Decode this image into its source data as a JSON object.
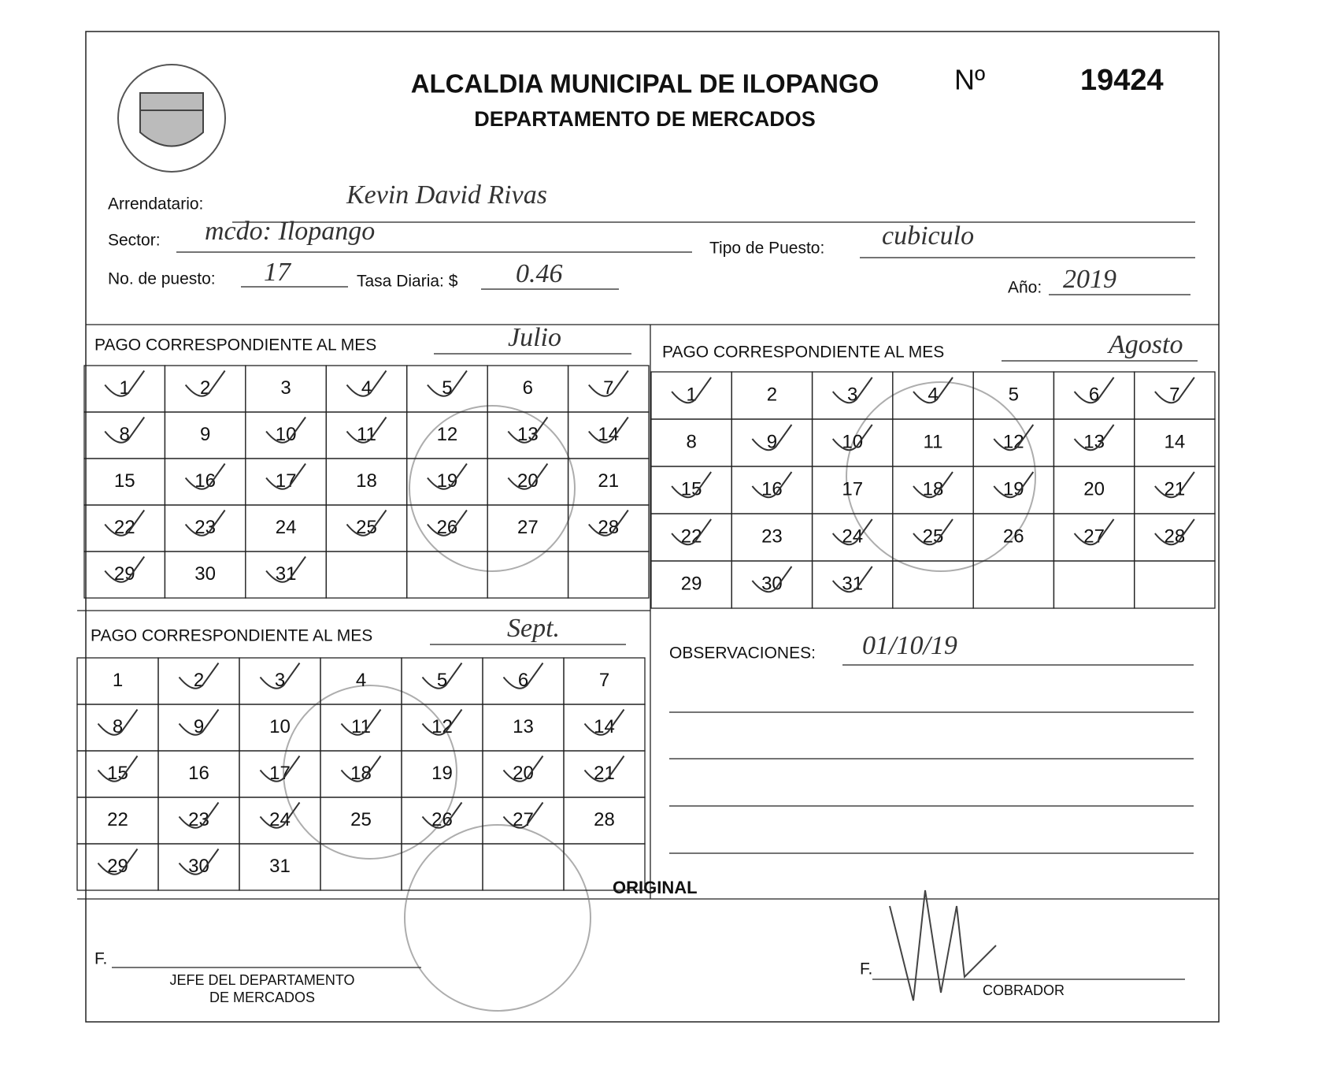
{
  "header": {
    "title": "ALCALDIA MUNICIPAL DE ILOPANGO",
    "subtitle": "DEPARTAMENTO DE MERCADOS",
    "number_label": "Nº",
    "number": "19424"
  },
  "fields": {
    "arrendatario": {
      "label": "Arrendatario:",
      "value": "Kevin David Rivas"
    },
    "sector": {
      "label": "Sector:",
      "value": "mcdo: Ilopango"
    },
    "tipo": {
      "label": "Tipo de Puesto:",
      "value": "cubiculo"
    },
    "puesto": {
      "label": "No. de puesto:",
      "value": "17"
    },
    "tasa": {
      "label": "Tasa Diaria: $",
      "value": "0.46"
    },
    "anio": {
      "label": "Año:",
      "value": "2019"
    }
  },
  "months": [
    {
      "label": "PAGO CORRESPONDIENTE AL MES",
      "value": "Julio",
      "days": [
        1,
        2,
        3,
        4,
        5,
        6,
        7,
        8,
        9,
        10,
        11,
        12,
        13,
        14,
        15,
        16,
        17,
        18,
        19,
        20,
        21,
        22,
        23,
        24,
        25,
        26,
        27,
        28,
        29,
        30,
        31
      ]
    },
    {
      "label": "PAGO CORRESPONDIENTE AL MES",
      "value": "Agosto",
      "days": [
        1,
        2,
        3,
        4,
        5,
        6,
        7,
        8,
        9,
        10,
        11,
        12,
        13,
        14,
        15,
        16,
        17,
        18,
        19,
        20,
        21,
        22,
        23,
        24,
        25,
        26,
        27,
        28,
        29,
        30,
        31
      ]
    },
    {
      "label": "PAGO CORRESPONDIENTE AL MES",
      "value": "Sept.",
      "days": [
        1,
        2,
        3,
        4,
        5,
        6,
        7,
        8,
        9,
        10,
        11,
        12,
        13,
        14,
        15,
        16,
        17,
        18,
        19,
        20,
        21,
        22,
        23,
        24,
        25,
        26,
        27,
        28,
        29,
        30,
        31
      ]
    }
  ],
  "observaciones": {
    "label": "OBSERVACIONES:",
    "value": "01/10/19"
  },
  "stamp": "ORIGINAL",
  "signatures": [
    {
      "prefix": "F.",
      "title": [
        "JEFE DEL DEPARTAMENTO",
        "DE MERCADOS"
      ]
    },
    {
      "prefix": "F.",
      "title": [
        "COBRADOR"
      ]
    }
  ]
}
